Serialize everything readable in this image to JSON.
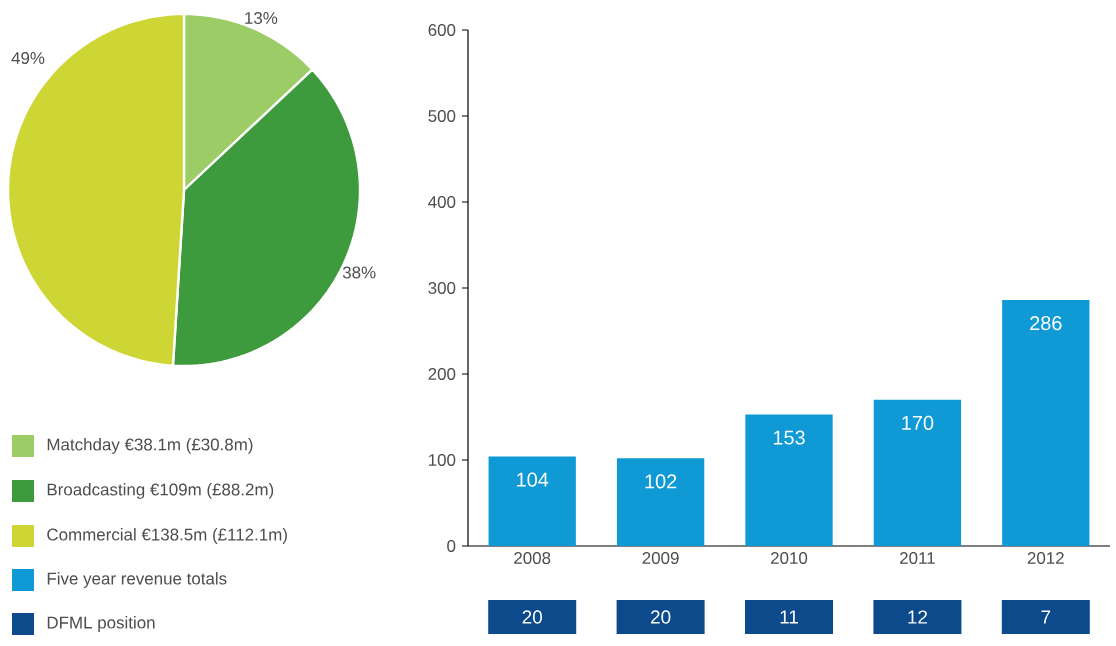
{
  "chart_data": [
    {
      "type": "pie",
      "categories": [
        "Matchday €38.1m (£30.8m)",
        "Broadcasting €109m (£88.2m)",
        "Commercial €138.5m (£112.1m)"
      ],
      "values": [
        13,
        38,
        49
      ],
      "value_labels": [
        "13%",
        "38%",
        "49%"
      ],
      "colors": [
        "#9ccc65",
        "#3d9a3d",
        "#cdd634"
      ],
      "legend": "bottom"
    },
    {
      "type": "bar",
      "categories": [
        "2008",
        "2009",
        "2010",
        "2011",
        "2012"
      ],
      "series": [
        {
          "name": "Five year revenue totals",
          "color": "#0f9ad6",
          "values": [
            104,
            102,
            153,
            170,
            286
          ]
        }
      ],
      "ylim": [
        0,
        600
      ],
      "yticks": [
        0,
        100,
        200,
        300,
        400,
        500,
        600
      ],
      "data_labels": true,
      "legend": "left",
      "annotations": [
        "DFML position",
        "20",
        "20",
        "11",
        "12",
        "7"
      ]
    }
  ]
}
